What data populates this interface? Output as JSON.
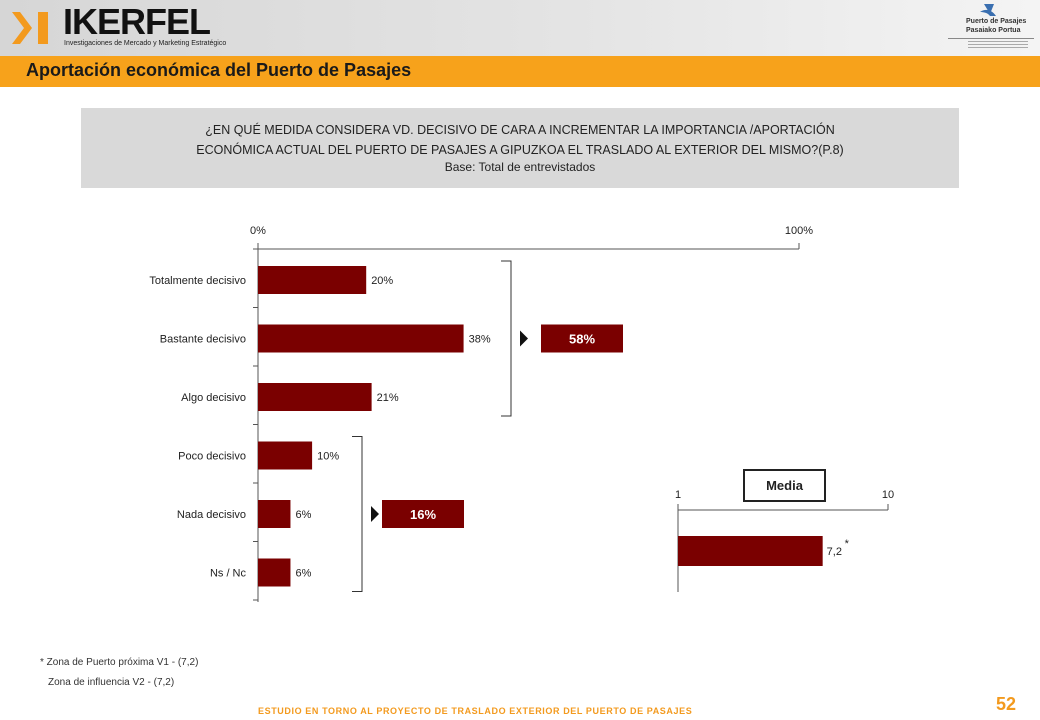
{
  "header": {
    "logo_name": "IKERFEL",
    "logo_tagline": "Investigaciones de Mercado y Marketing Estratégico",
    "partner_line1": "Puerto de Pasajes",
    "partner_line2": "Pasaiako Portua"
  },
  "title": "Aportación económica del Puerto de Pasajes",
  "question": {
    "line1": "¿EN QUÉ MEDIDA CONSIDERA VD. DECISIVO DE CARA A INCREMENTAR LA IMPORTANCIA /APORTACIÓN",
    "line2": "ECONÓMICA  ACTUAL DEL PUERTO DE PASAJES A GIPUZKOA EL TRASLADO AL EXTERIOR DEL MISMO?(P.8)",
    "base": "Base: Total de entrevistados"
  },
  "chart_data": [
    {
      "type": "bar",
      "orientation": "horizontal",
      "categories": [
        "Totalmente decisivo",
        "Bastante decisivo",
        "Algo decisivo",
        "Poco decisivo",
        "Nada decisivo",
        "Ns / Nc"
      ],
      "values": [
        20,
        38,
        21,
        10,
        6,
        6
      ],
      "value_labels": [
        "20%",
        "38%",
        "21%",
        "10%",
        "6%",
        "6%"
      ],
      "xlim": [
        0,
        100
      ],
      "ticks": [
        "0%",
        "100%"
      ],
      "bar_color": "#7a0000",
      "groups": [
        {
          "label": "58%",
          "from": 0,
          "to": 2
        },
        {
          "label": "16%",
          "from": 3,
          "to": 5
        }
      ]
    },
    {
      "type": "bar",
      "orientation": "horizontal",
      "title": "Media",
      "categories": [
        ""
      ],
      "values": [
        7.2
      ],
      "value_labels": [
        "7,2"
      ],
      "annotation": "*",
      "xlim": [
        1,
        10
      ],
      "ticks": [
        "1",
        "10"
      ],
      "bar_color": "#7a0000"
    }
  ],
  "footnotes": {
    "line1": "* Zona de Puerto próxima V1 - (7,2)",
    "line2": "Zona de influencia V2 - (7,2)"
  },
  "footer": {
    "study": "ESTUDIO EN TORNO AL PROYECTO DE TRASLADO EXTERIOR DEL PUERTO DE PASAJES",
    "page": "52"
  }
}
